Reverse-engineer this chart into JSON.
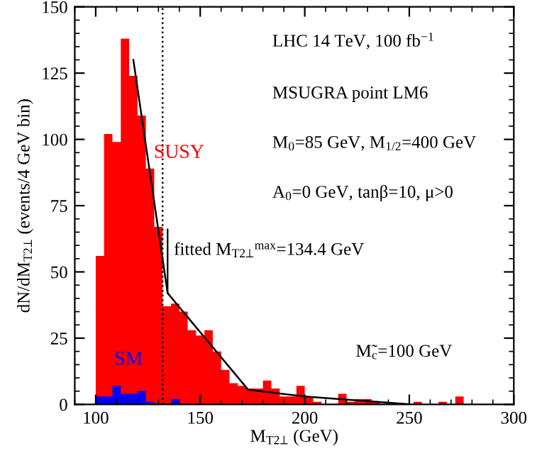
{
  "chart_data": {
    "type": "histogram",
    "xlabel": "M$_{T2⊥}$ (GeV)",
    "ylabel": "dN/dM$_{T2⊥}$ (events/4 GeV bin)",
    "bins": [
      100,
      104,
      108,
      112,
      116,
      120,
      124,
      128,
      132,
      136,
      140,
      144,
      148,
      152,
      156,
      160,
      164,
      168,
      172,
      176,
      180,
      184,
      188,
      192,
      196,
      200,
      204,
      208,
      212,
      216,
      220,
      224,
      228,
      232,
      236,
      240,
      244,
      248,
      252,
      256,
      260,
      264,
      268,
      272,
      276
    ],
    "series": [
      {
        "name": "SUSY",
        "color": "#ff0000",
        "values": [
          56,
          102,
          99,
          138,
          124,
          109,
          89,
          67,
          37,
          38,
          35,
          28,
          26,
          28,
          20,
          13,
          8,
          7,
          6,
          6,
          9,
          6,
          3,
          3,
          7,
          3,
          1,
          0,
          0,
          4,
          1,
          2,
          2,
          1,
          0,
          0,
          0,
          0,
          1,
          0,
          0,
          1,
          0,
          3
        ]
      },
      {
        "name": "SM",
        "color": "#0000ff",
        "values": [
          3,
          3,
          7,
          4,
          4,
          5,
          1,
          0,
          0,
          2,
          0,
          0,
          0,
          0,
          0,
          0,
          0,
          0,
          0,
          0,
          0,
          0,
          0,
          0,
          0,
          0,
          0,
          0,
          0,
          0,
          0,
          0,
          0,
          0,
          0,
          0,
          0,
          0,
          0,
          0,
          0,
          0,
          0,
          0
        ]
      },
      {
        "type": "line",
        "color": "#000000",
        "x": [
          118,
          134.4,
          173,
          200,
          251
        ],
        "values": [
          130,
          42,
          5.5,
          3,
          0
        ]
      }
    ],
    "ref_lines": [
      {
        "axis": "x",
        "value": 132,
        "line_style": "dotted",
        "color": "#000000"
      }
    ],
    "annotations": [
      "LHC 14 TeV, 100 fb$^{−1}$",
      "MSUGRA point LM6",
      "M$_{0}$=85 GeV, M$_{1/2}$=400 GeV",
      "A$_{0}$=0 GeV, tanβ=10, μ>0",
      {
        "text": "fitted M$_{T2⊥}$$^{max}$=134.4 GeV",
        "x": 134.4,
        "y": 42
      },
      "M̃$_{c}$=100 GeV"
    ],
    "xlim": [
      90,
      300
    ],
    "ylim": [
      0,
      150
    ],
    "xticks": [
      100,
      150,
      200,
      250,
      300
    ],
    "yticks": [
      0,
      25,
      50,
      75,
      100,
      125,
      150
    ],
    "grid": false,
    "legend": false
  }
}
